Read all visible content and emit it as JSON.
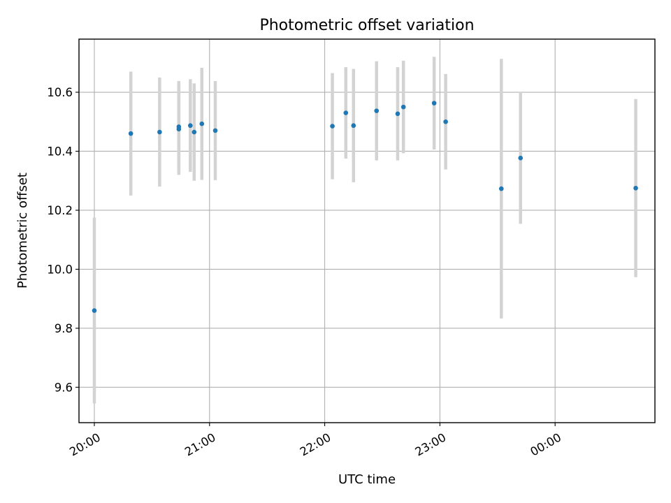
{
  "chart_data": {
    "type": "scatter",
    "title": "Photometric offset variation",
    "xlabel": "UTC time",
    "ylabel": "Photometric offset",
    "x_axis_type": "time",
    "xlim": [
      "19:52",
      "00:52"
    ],
    "ylim": [
      9.48,
      10.78
    ],
    "x_ticks": [
      {
        "time": "20:00",
        "label": "20:00"
      },
      {
        "time": "21:00",
        "label": "21:00"
      },
      {
        "time": "22:00",
        "label": "22:00"
      },
      {
        "time": "23:00",
        "label": "23:00"
      },
      {
        "time": "00:00",
        "label": "00:00"
      }
    ],
    "y_ticks": [
      9.6,
      9.8,
      10.0,
      10.2,
      10.4,
      10.6
    ],
    "grid": true,
    "point_color": "#1f77b4",
    "errorbar_color": "#d3d3d3",
    "points": [
      {
        "time": "20:00",
        "y": 9.86,
        "yerr": 0.315
      },
      {
        "time": "20:19",
        "y": 10.46,
        "yerr": 0.21
      },
      {
        "time": "20:34",
        "y": 10.465,
        "yerr": 0.185
      },
      {
        "time": "20:44",
        "y": 10.483,
        "yerr": 0.155
      },
      {
        "time": "20:44",
        "y": 10.475,
        "yerr": 0.155
      },
      {
        "time": "20:50",
        "y": 10.487,
        "yerr": 0.157
      },
      {
        "time": "20:52",
        "y": 10.465,
        "yerr": 0.165
      },
      {
        "time": "20:56",
        "y": 10.493,
        "yerr": 0.19
      },
      {
        "time": "21:03",
        "y": 10.47,
        "yerr": 0.168
      },
      {
        "time": "22:04",
        "y": 10.485,
        "yerr": 0.18
      },
      {
        "time": "22:11",
        "y": 10.53,
        "yerr": 0.155
      },
      {
        "time": "22:15",
        "y": 10.487,
        "yerr": 0.192
      },
      {
        "time": "22:27",
        "y": 10.537,
        "yerr": 0.168
      },
      {
        "time": "22:38",
        "y": 10.527,
        "yerr": 0.158
      },
      {
        "time": "22:41",
        "y": 10.55,
        "yerr": 0.157
      },
      {
        "time": "22:57",
        "y": 10.563,
        "yerr": 0.157
      },
      {
        "time": "23:03",
        "y": 10.5,
        "yerr": 0.162
      },
      {
        "time": "23:32",
        "y": 10.273,
        "yerr": 0.44
      },
      {
        "time": "23:42",
        "y": 10.377,
        "yerr": 0.223
      },
      {
        "time": "00:42",
        "y": 10.275,
        "yerr": 0.302
      }
    ]
  }
}
